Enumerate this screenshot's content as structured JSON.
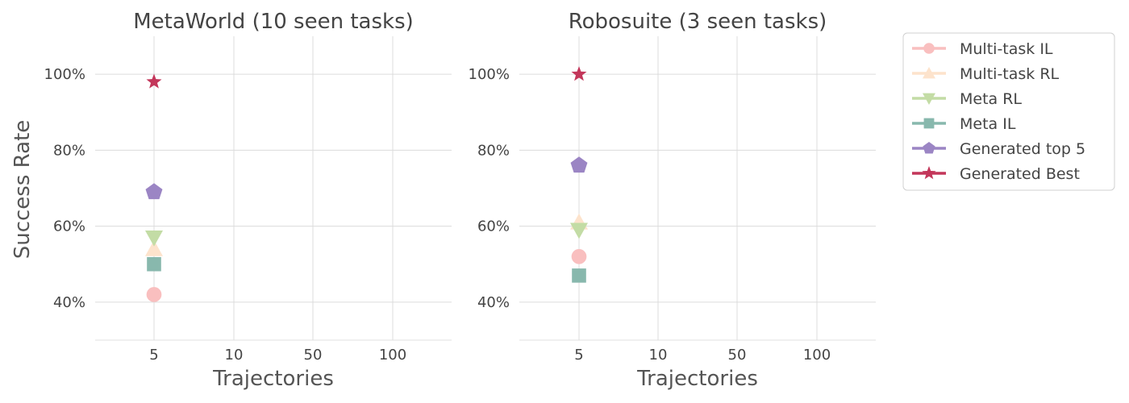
{
  "chart_data": [
    {
      "type": "scatter",
      "title": "MetaWorld (10 seen tasks)",
      "xlabel": "Trajectories",
      "ylabel": "Success Rate",
      "categories": [
        "5",
        "10",
        "50",
        "100"
      ],
      "y_ticks": [
        "40%",
        "60%",
        "80%",
        "100%"
      ],
      "ylim": [
        30,
        110
      ],
      "grid": true,
      "series": [
        {
          "name": "Multi-task IL",
          "x": "5",
          "value": 42
        },
        {
          "name": "Multi-task RL",
          "x": "5",
          "value": 54
        },
        {
          "name": "Meta RL",
          "x": "5",
          "value": 57
        },
        {
          "name": "Meta IL",
          "x": "5",
          "value": 50
        },
        {
          "name": "Generated top 5",
          "x": "5",
          "value": 69
        },
        {
          "name": "Generated Best",
          "x": "5",
          "value": 98
        }
      ]
    },
    {
      "type": "scatter",
      "title": "Robosuite (3 seen tasks)",
      "xlabel": "Trajectories",
      "ylabel": "",
      "categories": [
        "5",
        "10",
        "50",
        "100"
      ],
      "y_ticks": [
        "40%",
        "60%",
        "80%",
        "100%"
      ],
      "ylim": [
        30,
        110
      ],
      "grid": true,
      "series": [
        {
          "name": "Multi-task IL",
          "x": "5",
          "value": 52
        },
        {
          "name": "Multi-task RL",
          "x": "5",
          "value": 61
        },
        {
          "name": "Meta RL",
          "x": "5",
          "value": 59
        },
        {
          "name": "Meta IL",
          "x": "5",
          "value": 47
        },
        {
          "name": "Generated top 5",
          "x": "5",
          "value": 76
        },
        {
          "name": "Generated Best",
          "x": "5",
          "value": 100
        }
      ]
    }
  ],
  "legend": {
    "placement": "outside-right",
    "entries": [
      {
        "label": "Multi-task IL",
        "color": "#f9bfbf",
        "marker": "circle"
      },
      {
        "label": "Multi-task RL",
        "color": "#fde3cc",
        "marker": "triangle-up"
      },
      {
        "label": "Meta RL",
        "color": "#c3dca5",
        "marker": "triangle-down"
      },
      {
        "label": "Meta IL",
        "color": "#88b8ad",
        "marker": "square"
      },
      {
        "label": "Generated top 5",
        "color": "#9b85c4",
        "marker": "pentagon"
      },
      {
        "label": "Generated Best",
        "color": "#c3365a",
        "marker": "star"
      }
    ]
  }
}
